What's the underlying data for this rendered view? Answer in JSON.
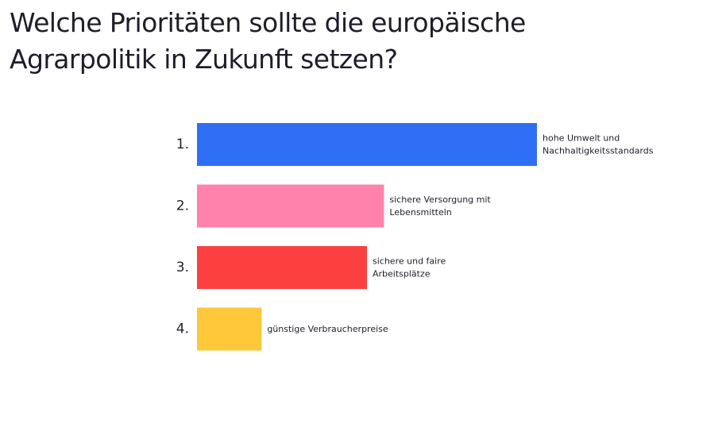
{
  "chart_data": {
    "type": "bar",
    "orientation": "horizontal",
    "title_lines": [
      "Welche Prioritäten sollte die europäische",
      "Agrarpolitik in Zukunft setzen?"
    ],
    "ranks": [
      "1.",
      "2.",
      "3.",
      "4."
    ],
    "categories": [
      [
        "hohe Umwelt und",
        "Nachhaltigkeitsstandards"
      ],
      [
        "sichere Versorgung mit",
        "Lebensmitteln"
      ],
      [
        "sichere und faire",
        "Arbeitsplätze"
      ],
      [
        "günstige Verbraucherpreise"
      ]
    ],
    "values": [
      100,
      55,
      50,
      19
    ],
    "xlim": [
      0,
      100
    ],
    "colors": [
      "#2f6ff6",
      "#ff82ad",
      "#fc4040",
      "#ffc83a"
    ],
    "grid": false,
    "legend": "none"
  }
}
